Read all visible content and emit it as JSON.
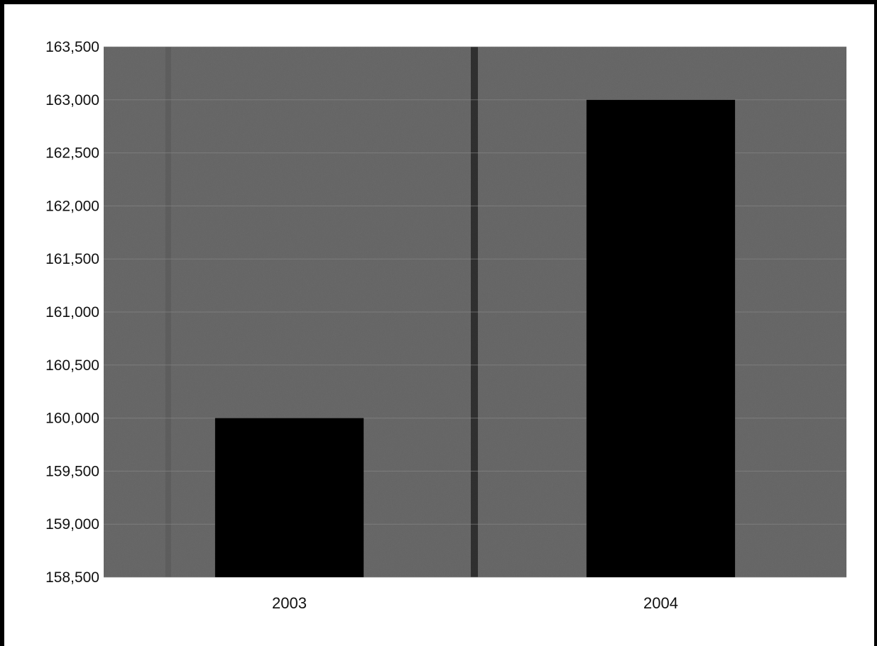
{
  "chart_data": {
    "type": "bar",
    "categories": [
      "2003",
      "2004"
    ],
    "values": [
      160000,
      163000
    ],
    "ylim": [
      158500,
      163500
    ],
    "yticks": [
      163500,
      163000,
      162500,
      162000,
      161500,
      161000,
      160500,
      160000,
      159500,
      159000,
      158500
    ],
    "ytick_labels": [
      "163,500",
      "163,000",
      "162,500",
      "162,000",
      "161,500",
      "161,000",
      "160,500",
      "160,000",
      "159,500",
      "159,000",
      "158,500"
    ],
    "grid": true,
    "legend": "none",
    "colors": {
      "bar": "#000000",
      "plot_background": "#6f6f6f",
      "gridline": "#8c8c8c",
      "page_background": "#ffffff"
    }
  }
}
